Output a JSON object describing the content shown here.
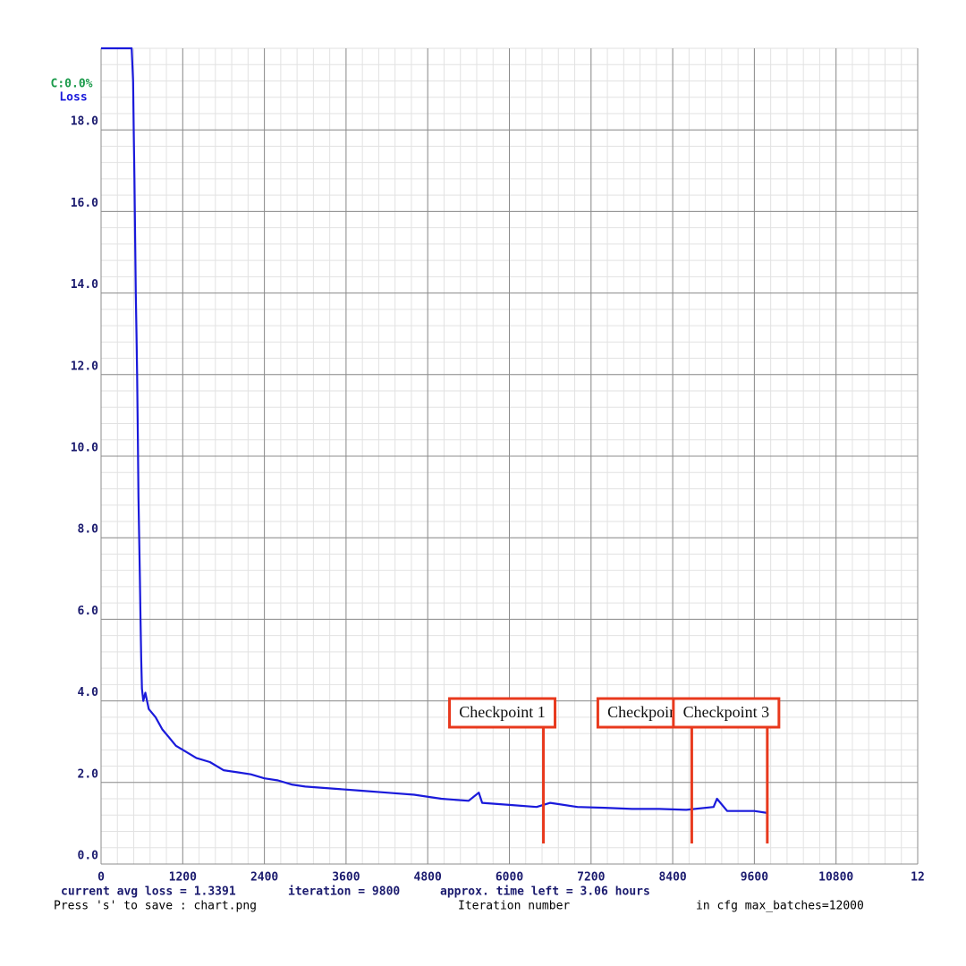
{
  "chart_data": {
    "type": "line",
    "legend_texts": [
      "C:0.0%",
      "Loss"
    ],
    "x": [
      0,
      100,
      200,
      300,
      400,
      450,
      470,
      480,
      490,
      500,
      510,
      520,
      530,
      540,
      550,
      560,
      570,
      580,
      590,
      600,
      620,
      650,
      700,
      800,
      900,
      1000,
      1100,
      1200,
      1400,
      1600,
      1800,
      2000,
      2200,
      2400,
      2600,
      2800,
      3000,
      3400,
      3800,
      4200,
      4600,
      5000,
      5400,
      5550,
      5600,
      6000,
      6400,
      6600,
      7000,
      7400,
      7800,
      8200,
      8600,
      9000,
      9050,
      9200,
      9600,
      9800
    ],
    "series": [
      {
        "name": "Loss",
        "color": "#1a1adb",
        "values": [
          20,
          20,
          20,
          20,
          20,
          20,
          19.2,
          18.0,
          16.8,
          15.5,
          14.0,
          13.0,
          12.0,
          10.5,
          9.0,
          8.0,
          7.0,
          6.0,
          5.0,
          4.3,
          4.0,
          4.2,
          3.8,
          3.6,
          3.3,
          3.1,
          2.9,
          2.8,
          2.6,
          2.5,
          2.3,
          2.25,
          2.2,
          2.1,
          2.05,
          1.95,
          1.9,
          1.85,
          1.8,
          1.75,
          1.7,
          1.6,
          1.55,
          1.75,
          1.5,
          1.45,
          1.4,
          1.5,
          1.4,
          1.38,
          1.35,
          1.35,
          1.33,
          1.4,
          1.6,
          1.3,
          1.3,
          1.25
        ]
      }
    ],
    "xlim": [
      0,
      12000
    ],
    "xticks": [
      0,
      1200,
      2400,
      3600,
      4800,
      6000,
      7200,
      8400,
      9600,
      10800,
      {
        "value": 12000,
        "label": "12"
      }
    ],
    "ylim": [
      0,
      20
    ],
    "yticks": [
      {
        "value": 0,
        "label": "0.0"
      },
      {
        "value": 2,
        "label": "2.0"
      },
      {
        "value": 4,
        "label": "4.0"
      },
      {
        "value": 6,
        "label": "6.0"
      },
      {
        "value": 8,
        "label": "8.0"
      },
      {
        "value": 10,
        "label": "10.0"
      },
      {
        "value": 12,
        "label": "12.0"
      },
      {
        "value": 14,
        "label": "14.0"
      },
      {
        "value": 16,
        "label": "16.0"
      },
      {
        "value": 18,
        "label": "18.0"
      }
    ],
    "grid": true,
    "minor_grid_divisions": 5,
    "annotations": [
      {
        "text": "Checkpoint 1",
        "x": 6500
      },
      {
        "text": "Checkpoint 2",
        "x": 8680
      },
      {
        "text": "Checkpoint 3",
        "x": 9790
      }
    ],
    "status_line": [
      "current avg loss = 1.3391",
      "iteration = 9800",
      "approx. time left = 3.06 hours"
    ],
    "save_hint": "Press 's' to save : chart.png",
    "x_label": "Iteration number",
    "cfg_note": "in cfg max_batches=12000"
  }
}
